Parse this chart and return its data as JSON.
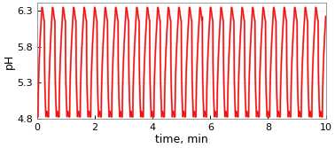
{
  "title": "",
  "xlabel": "time, min",
  "ylabel": "pH",
  "xlim": [
    0,
    10
  ],
  "ylim": [
    4.8,
    6.4
  ],
  "yticks": [
    4.8,
    5.3,
    5.8,
    6.3
  ],
  "xticks": [
    0,
    2,
    4,
    6,
    8,
    10
  ],
  "line_color": "#ee1111",
  "line_color2": "#ff7777",
  "ph_min": 4.83,
  "ph_max": 6.34,
  "period": 0.365,
  "num_points": 8000,
  "t_end": 10.0,
  "xlabel_fontsize": 9,
  "ylabel_fontsize": 9,
  "tick_fontsize": 8,
  "linewidth": 0.9,
  "linewidth2": 1.5,
  "bg_color": "#ffffff"
}
